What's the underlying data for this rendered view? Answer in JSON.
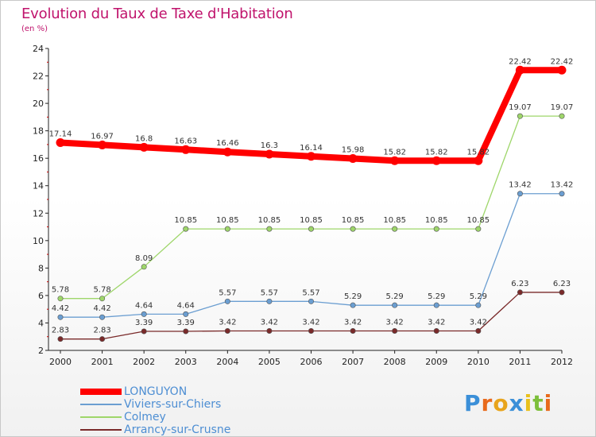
{
  "chart_data": {
    "type": "line",
    "title": "Evolution du Taux de Taxe d'Habitation",
    "subtitle": "(en %)",
    "x": [
      "2000",
      "2001",
      "2002",
      "2003",
      "2004",
      "2005",
      "2006",
      "2007",
      "2008",
      "2009",
      "2010",
      "2011",
      "2012"
    ],
    "ylim": [
      2,
      24
    ],
    "yticks": [
      2,
      4,
      6,
      8,
      10,
      12,
      14,
      16,
      18,
      20,
      22,
      24
    ],
    "grid": false,
    "legend_position": "bottom-left",
    "series": [
      {
        "name": "LONGUYON",
        "color": "#ff0000",
        "values": [
          17.14,
          16.97,
          16.8,
          16.63,
          16.46,
          16.3,
          16.14,
          15.98,
          15.82,
          15.82,
          15.82,
          22.42,
          22.42
        ],
        "labels": [
          "17.14",
          "16.97",
          "16.8",
          "16.63",
          "16.46",
          "16.3",
          "16.14",
          "15.98",
          "15.82",
          "15.82",
          "15.82",
          "22.42",
          "22.42"
        ]
      },
      {
        "name": "Viviers-sur-Chiers",
        "color": "#6b9ed1",
        "values": [
          4.42,
          4.42,
          4.64,
          4.64,
          5.57,
          5.57,
          5.57,
          5.29,
          5.29,
          5.29,
          5.29,
          13.42,
          13.42
        ],
        "labels": [
          "4.42",
          "4.42",
          "4.64",
          "4.64",
          "5.57",
          "5.57",
          "5.57",
          "5.29",
          "5.29",
          "5.29",
          "5.29",
          "13.42",
          "13.42"
        ]
      },
      {
        "name": "Colmey",
        "color": "#9ed66a",
        "values": [
          5.78,
          5.78,
          8.09,
          10.85,
          10.85,
          10.85,
          10.85,
          10.85,
          10.85,
          10.85,
          10.85,
          19.07,
          19.07
        ],
        "labels": [
          "5.78",
          "5.78",
          "8.09",
          "10.85",
          "10.85",
          "10.85",
          "10.85",
          "10.85",
          "10.85",
          "10.85",
          "10.85",
          "19.07",
          "19.07"
        ]
      },
      {
        "name": "Arrancy-sur-Crusne",
        "color": "#7a2a2a",
        "values": [
          2.83,
          2.83,
          3.39,
          3.39,
          3.42,
          3.42,
          3.42,
          3.42,
          3.42,
          3.42,
          3.42,
          6.23,
          6.23
        ],
        "labels": [
          "2.83",
          "2.83",
          "3.39",
          "3.39",
          "3.42",
          "3.42",
          "3.42",
          "3.42",
          "3.42",
          "3.42",
          "3.42",
          "6.23",
          "6.23"
        ]
      }
    ]
  },
  "brand": {
    "letters": [
      "P",
      "r",
      "o",
      "x",
      "i",
      "t",
      "i"
    ],
    "colors": [
      "#3b8fd8",
      "#e86a1c",
      "#e8a41c",
      "#3b8fd8",
      "#e8c01c",
      "#7dbf3b",
      "#e86a1c"
    ]
  }
}
